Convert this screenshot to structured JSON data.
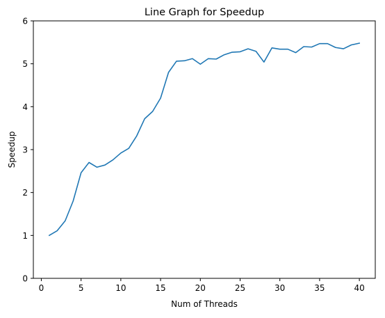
{
  "chart_data": {
    "type": "line",
    "title": "Line Graph for Speedup",
    "xlabel": "Num of Threads",
    "ylabel": "Speedup",
    "xlim": [
      -1,
      42
    ],
    "ylim": [
      0,
      6
    ],
    "x_ticks": [
      0,
      5,
      10,
      15,
      20,
      25,
      30,
      35,
      40
    ],
    "y_ticks": [
      0,
      1,
      2,
      3,
      4,
      5,
      6
    ],
    "grid": false,
    "series": [
      {
        "color": "#1f77b4",
        "x": [
          1,
          2,
          3,
          4,
          5,
          6,
          7,
          8,
          9,
          10,
          11,
          12,
          13,
          14,
          15,
          16,
          17,
          18,
          19,
          20,
          21,
          22,
          23,
          24,
          25,
          26,
          27,
          28,
          29,
          30,
          31,
          32,
          33,
          34,
          35,
          36,
          37,
          38,
          39,
          40
        ],
        "values": [
          1.0,
          1.11,
          1.34,
          1.8,
          2.46,
          2.7,
          2.59,
          2.64,
          2.76,
          2.92,
          3.03,
          3.32,
          3.72,
          3.89,
          4.2,
          4.8,
          5.06,
          5.07,
          5.12,
          4.99,
          5.12,
          5.11,
          5.21,
          5.27,
          5.28,
          5.35,
          5.29,
          5.04,
          5.37,
          5.34,
          5.34,
          5.26,
          5.4,
          5.39,
          5.47,
          5.47,
          5.38,
          5.35,
          5.44,
          5.48
        ]
      }
    ]
  }
}
